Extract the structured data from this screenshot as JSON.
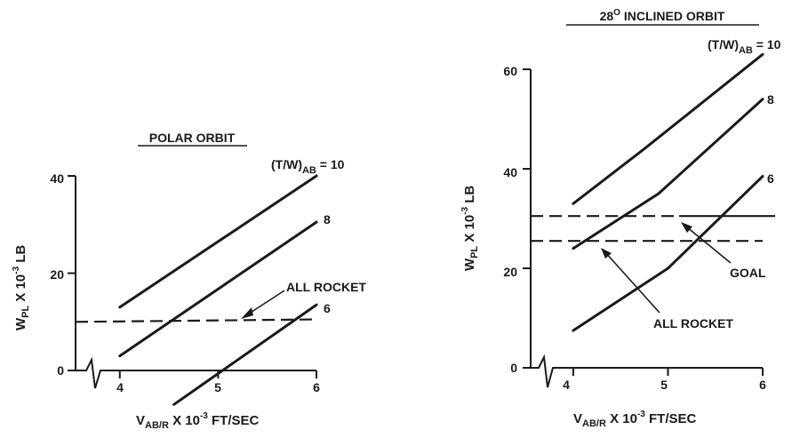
{
  "chart_data": [
    {
      "type": "line",
      "title": "POLAR ORBIT",
      "xlabel": {
        "main": "V",
        "sub": "AB/R",
        "rest": " X 10",
        "exp": "-3",
        "unit": " FT/SEC"
      },
      "ylabel": {
        "main": "W",
        "sub": "PL",
        "rest": " X 10",
        "exp": "-3",
        "unit": " LB"
      },
      "xlim": [
        3.55,
        6.0
      ],
      "ylim": [
        0,
        40
      ],
      "x_ticks": [
        4,
        5,
        6
      ],
      "y_ticks": [
        0,
        20,
        40
      ],
      "broken_x_axis": true,
      "series": [
        {
          "name": "(T/W)AB = 10",
          "label_main": "(T/W)",
          "label_sub": "AB",
          "label_rest": " = 10",
          "x": [
            4,
            6
          ],
          "y": [
            13,
            40
          ],
          "style": "solid"
        },
        {
          "name": "8",
          "label_main": "8",
          "x": [
            4,
            6
          ],
          "y": [
            3,
            30.5
          ],
          "style": "solid"
        },
        {
          "name": "6",
          "label_main": "6",
          "x": [
            4.55,
            6
          ],
          "y": [
            -7,
            13.5
          ],
          "style": "solid"
        },
        {
          "name": "ALL ROCKET",
          "label_main": "ALL ROCKET",
          "x": [
            3.55,
            6
          ],
          "y": [
            10,
            10.5
          ],
          "style": "dashed"
        }
      ]
    },
    {
      "type": "line",
      "title": "28",
      "title_sup": "O",
      "title_rest": " INCLINED ORBIT",
      "xlabel": {
        "main": "V",
        "sub": "AB/R",
        "rest": " X 10",
        "exp": "-3",
        "unit": " FT/SEC"
      },
      "ylabel": {
        "main": "W",
        "sub": "PL",
        "rest": " X 10",
        "exp": "-3",
        "unit": " LB"
      },
      "xlim": [
        3.55,
        6.0
      ],
      "ylim": [
        0,
        60
      ],
      "x_ticks": [
        4,
        5,
        6
      ],
      "y_ticks": [
        0,
        20,
        40,
        60
      ],
      "broken_x_axis": true,
      "series": [
        {
          "name": "(T/W)AB = 10",
          "label_main": "(T/W)",
          "label_sub": "AB",
          "label_rest": " = 10",
          "x": [
            4,
            4.75,
            6
          ],
          "y": [
            33,
            44,
            63
          ],
          "style": "solid"
        },
        {
          "name": "8",
          "label_main": "8",
          "x": [
            4,
            4.9,
            6
          ],
          "y": [
            24,
            35,
            54
          ],
          "style": "solid"
        },
        {
          "name": "6",
          "label_main": "6",
          "x": [
            4,
            5,
            6
          ],
          "y": [
            7.5,
            20,
            38.5
          ],
          "style": "solid"
        },
        {
          "name": "GOAL",
          "label_main": "GOAL",
          "x": [
            3.55,
            6
          ],
          "y": [
            30.5,
            30.5
          ],
          "style": "dashed-solid"
        },
        {
          "name": "ALL ROCKET",
          "label_main": "ALL ROCKET",
          "x": [
            3.55,
            6
          ],
          "y": [
            25.5,
            25.5
          ],
          "style": "dashed"
        }
      ]
    }
  ]
}
